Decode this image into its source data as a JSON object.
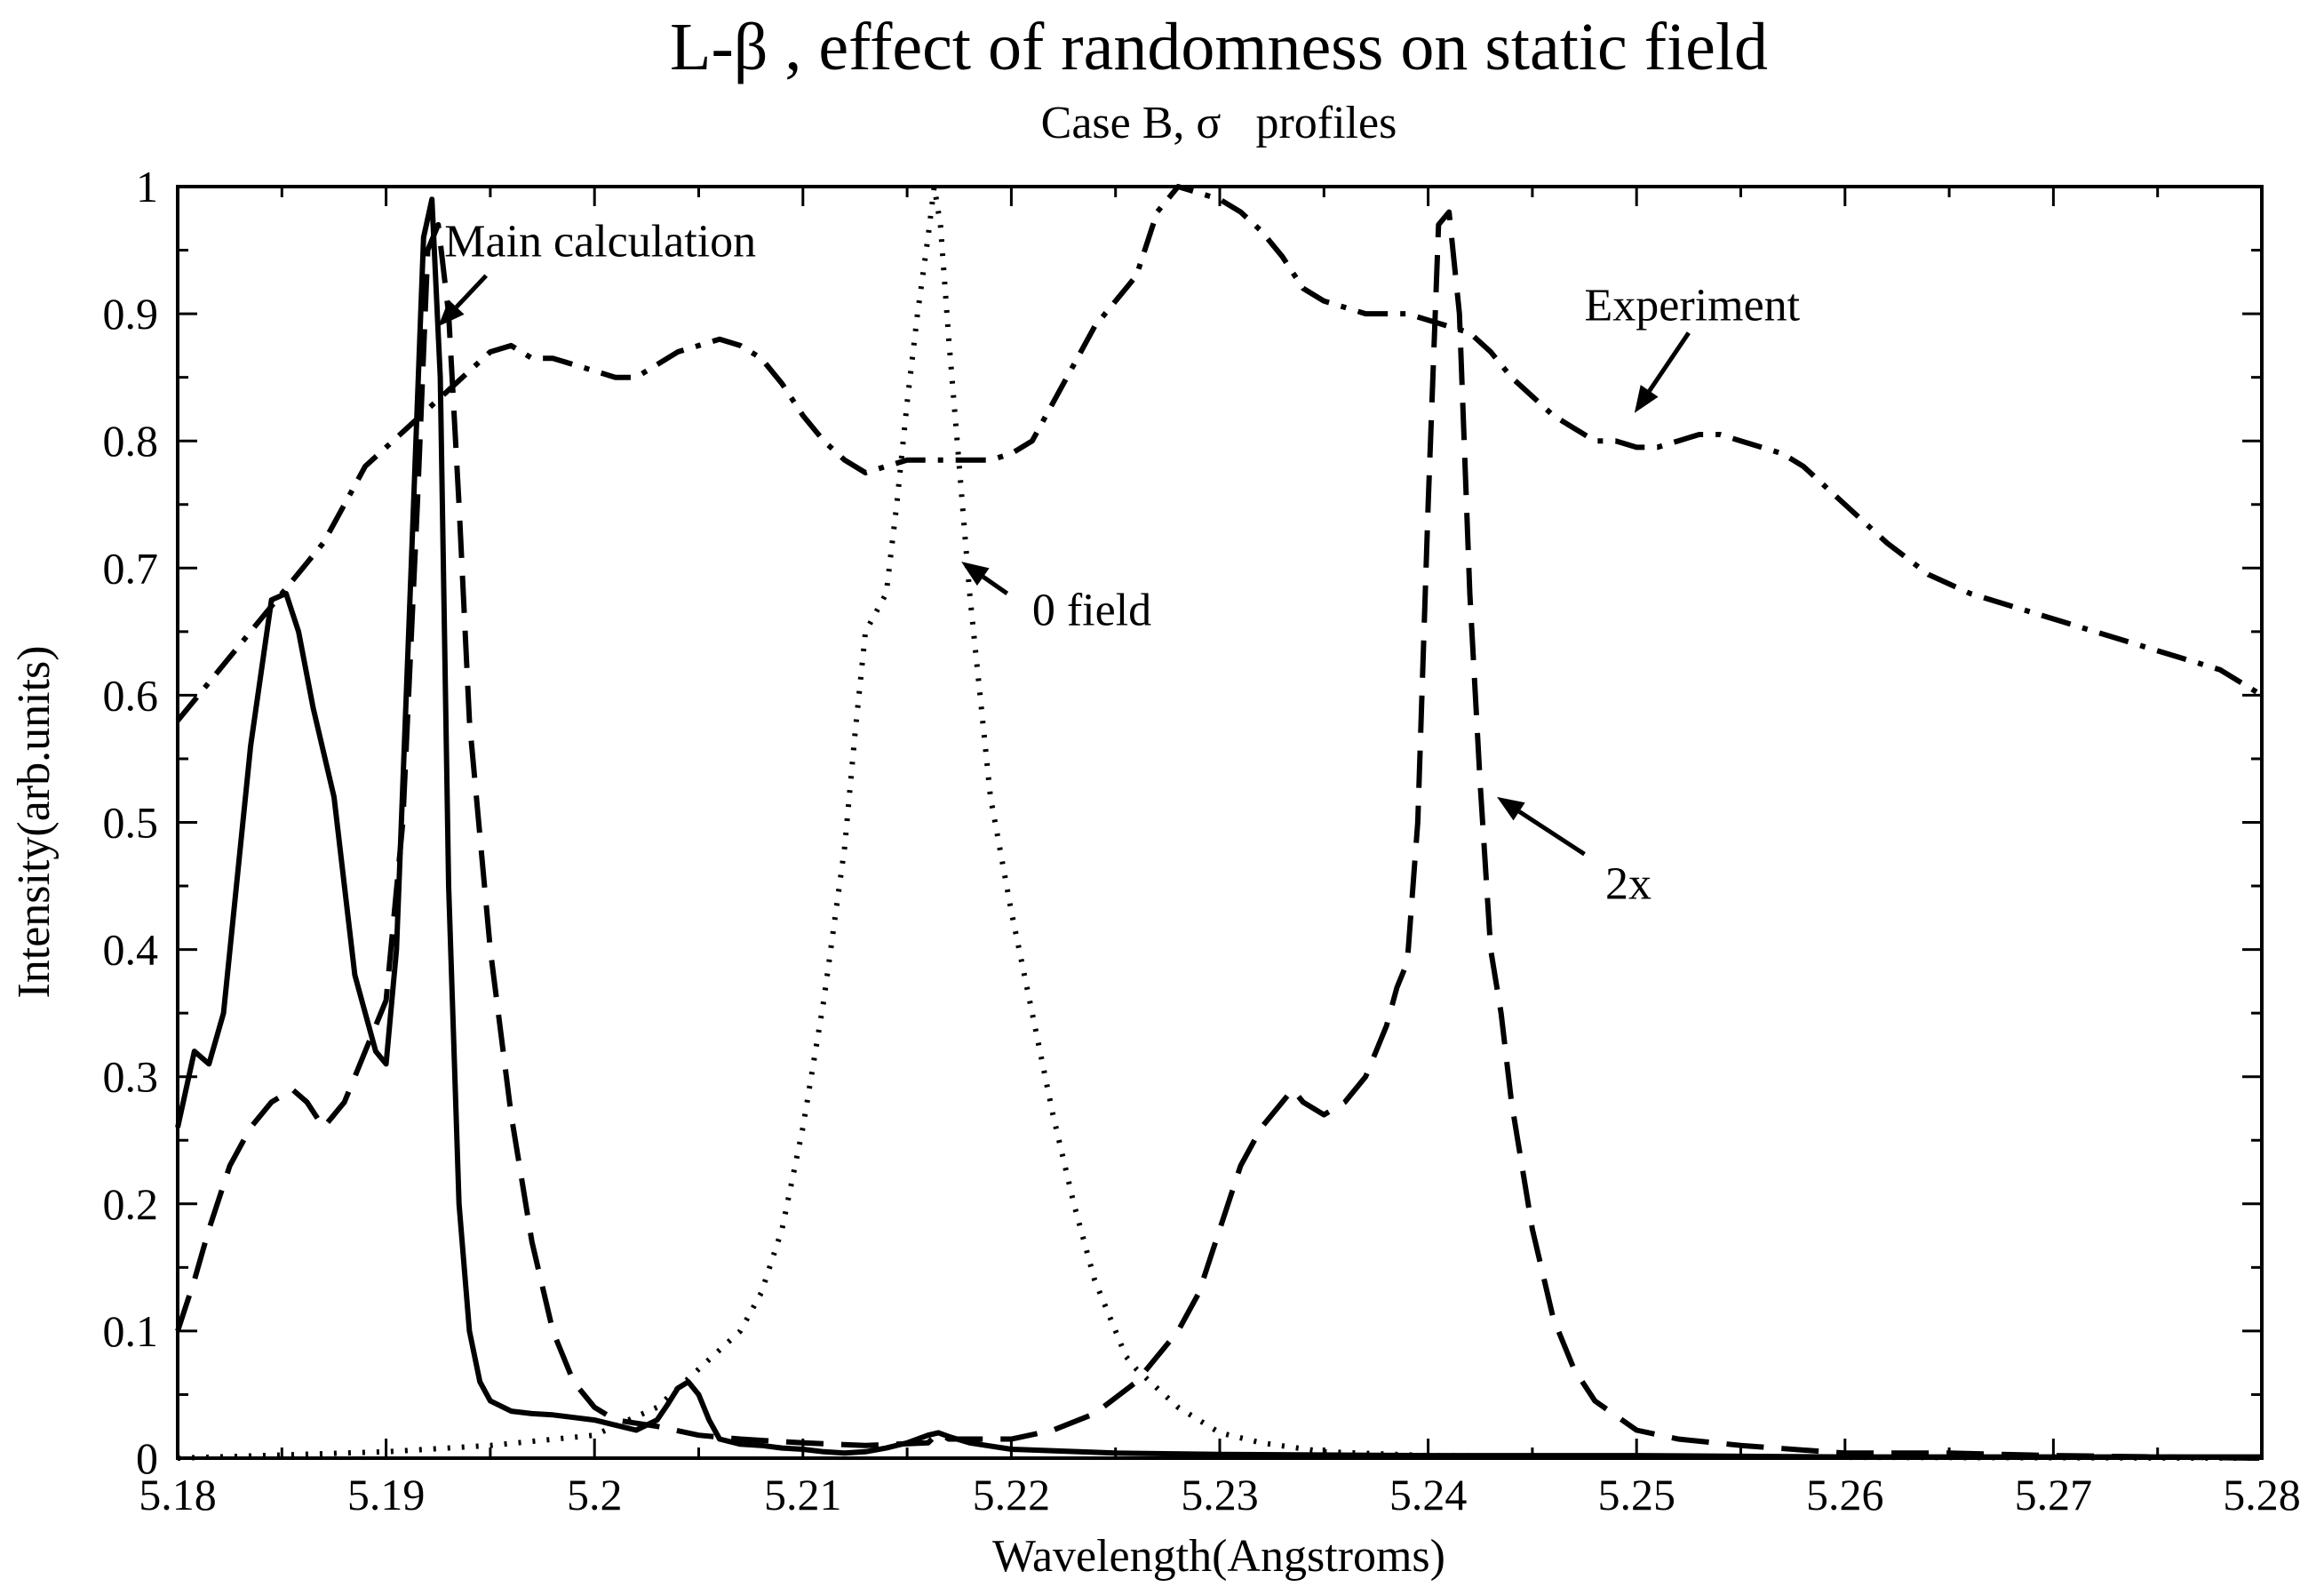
{
  "chart_data": {
    "type": "line",
    "title": "L-β , effect of randomness on static field",
    "subtitle": "Case B, σ   profiles",
    "xlabel": "Wavelength(Angstroms)",
    "ylabel": "Intensity(arb.units)",
    "xlim": [
      5.18,
      5.28
    ],
    "ylim": [
      0,
      1
    ],
    "xticks": [
      "5.18",
      "5.19",
      "5.2",
      "5.21",
      "5.22",
      "5.23",
      "5.24",
      "5.25",
      "5.26",
      "5.27",
      "5.28"
    ],
    "yticks": [
      "0",
      "0.1",
      "0.2",
      "0.3",
      "0.4",
      "0.5",
      "0.6",
      "0.7",
      "0.8",
      "0.9",
      "1"
    ],
    "grid": false,
    "series": [
      {
        "name": "Main calculation",
        "style": "solid",
        "color": "#000000",
        "x": [
          5.18,
          5.1808,
          5.1815,
          5.1822,
          5.1835,
          5.1845,
          5.1852,
          5.1858,
          5.1865,
          5.1875,
          5.1885,
          5.1895,
          5.19,
          5.1905,
          5.1912,
          5.1918,
          5.1922,
          5.1926,
          5.193,
          5.1935,
          5.194,
          5.1945,
          5.195,
          5.196,
          5.197,
          5.198,
          5.199,
          5.2,
          5.201,
          5.202,
          5.203,
          5.2035,
          5.204,
          5.2045,
          5.205,
          5.2055,
          5.206,
          5.207,
          5.208,
          5.209,
          5.21,
          5.211,
          5.212,
          5.213,
          5.214,
          5.215,
          5.216,
          5.2165,
          5.217,
          5.218,
          5.22,
          5.225,
          5.23,
          5.24,
          5.25,
          5.26,
          5.27,
          5.28
        ],
        "y": [
          0.26,
          0.32,
          0.31,
          0.35,
          0.56,
          0.675,
          0.68,
          0.65,
          0.59,
          0.52,
          0.38,
          0.32,
          0.31,
          0.4,
          0.7,
          0.96,
          0.99,
          0.85,
          0.45,
          0.2,
          0.1,
          0.06,
          0.045,
          0.037,
          0.035,
          0.034,
          0.032,
          0.03,
          0.026,
          0.022,
          0.03,
          0.042,
          0.055,
          0.06,
          0.05,
          0.03,
          0.015,
          0.011,
          0.01,
          0.008,
          0.007,
          0.005,
          0.004,
          0.005,
          0.008,
          0.012,
          0.018,
          0.02,
          0.017,
          0.012,
          0.007,
          0.004,
          0.003,
          0.002,
          0.002,
          0.001,
          0.001,
          0.001
        ]
      },
      {
        "name": "0 field",
        "style": "dotted",
        "color": "#000000",
        "x": [
          5.18,
          5.19,
          5.195,
          5.2,
          5.203,
          5.205,
          5.207,
          5.208,
          5.209,
          5.21,
          5.211,
          5.212,
          5.2125,
          5.213,
          5.214,
          5.2145,
          5.215,
          5.2155,
          5.216,
          5.2163,
          5.2166,
          5.217,
          5.2175,
          5.218,
          5.2185,
          5.219,
          5.22,
          5.221,
          5.222,
          5.223,
          5.224,
          5.225,
          5.2255,
          5.226,
          5.227,
          5.228,
          5.229,
          5.23,
          5.232,
          5.235,
          5.24,
          5.25,
          5.28
        ],
        "y": [
          0.0,
          0.005,
          0.01,
          0.018,
          0.04,
          0.07,
          0.1,
          0.13,
          0.18,
          0.26,
          0.36,
          0.48,
          0.57,
          0.65,
          0.68,
          0.75,
          0.83,
          0.9,
          0.96,
          1.0,
          0.97,
          0.88,
          0.78,
          0.68,
          0.6,
          0.52,
          0.43,
          0.35,
          0.27,
          0.2,
          0.14,
          0.1,
          0.08,
          0.07,
          0.055,
          0.04,
          0.03,
          0.02,
          0.012,
          0.005,
          0.002,
          0.001,
          0.0
        ]
      },
      {
        "name": "2x",
        "style": "dashed",
        "color": "#000000",
        "x": [
          5.18,
          5.1808,
          5.1815,
          5.1825,
          5.1835,
          5.1845,
          5.1855,
          5.1862,
          5.187,
          5.188,
          5.189,
          5.19,
          5.1908,
          5.1915,
          5.192,
          5.1925,
          5.193,
          5.1935,
          5.194,
          5.195,
          5.196,
          5.197,
          5.198,
          5.199,
          5.2,
          5.201,
          5.203,
          5.205,
          5.207,
          5.21,
          5.213,
          5.216,
          5.2165,
          5.217,
          5.22,
          5.222,
          5.224,
          5.226,
          5.227,
          5.228,
          5.229,
          5.23,
          5.231,
          5.232,
          5.233,
          5.2335,
          5.234,
          5.235,
          5.236,
          5.237,
          5.238,
          5.2385,
          5.239,
          5.2395,
          5.24,
          5.2405,
          5.241,
          5.2415,
          5.242,
          5.2425,
          5.243,
          5.2435,
          5.244,
          5.245,
          5.246,
          5.247,
          5.248,
          5.25,
          5.252,
          5.255,
          5.26,
          5.265,
          5.27,
          5.275,
          5.28
        ],
        "y": [
          0.1,
          0.14,
          0.18,
          0.23,
          0.26,
          0.28,
          0.29,
          0.28,
          0.26,
          0.28,
          0.32,
          0.36,
          0.5,
          0.75,
          0.95,
          0.97,
          0.9,
          0.75,
          0.58,
          0.4,
          0.27,
          0.17,
          0.1,
          0.06,
          0.04,
          0.03,
          0.025,
          0.018,
          0.015,
          0.012,
          0.01,
          0.012,
          0.02,
          0.015,
          0.015,
          0.022,
          0.035,
          0.06,
          0.08,
          0.1,
          0.13,
          0.18,
          0.23,
          0.26,
          0.28,
          0.29,
          0.28,
          0.27,
          0.28,
          0.3,
          0.34,
          0.37,
          0.39,
          0.5,
          0.75,
          0.97,
          0.98,
          0.9,
          0.68,
          0.53,
          0.4,
          0.35,
          0.28,
          0.18,
          0.11,
          0.07,
          0.045,
          0.022,
          0.015,
          0.01,
          0.004,
          0.004,
          0.002,
          0.001,
          0.0
        ]
      },
      {
        "name": "Experiment",
        "style": "dash-dot",
        "color": "#000000",
        "x": [
          5.18,
          5.181,
          5.182,
          5.183,
          5.184,
          5.185,
          5.186,
          5.187,
          5.188,
          5.189,
          5.19,
          5.191,
          5.192,
          5.193,
          5.194,
          5.195,
          5.196,
          5.197,
          5.198,
          5.199,
          5.2,
          5.201,
          5.202,
          5.203,
          5.204,
          5.205,
          5.206,
          5.207,
          5.208,
          5.209,
          5.21,
          5.211,
          5.212,
          5.213,
          5.214,
          5.215,
          5.216,
          5.217,
          5.218,
          5.219,
          5.22,
          5.221,
          5.222,
          5.223,
          5.224,
          5.225,
          5.226,
          5.227,
          5.228,
          5.229,
          5.23,
          5.231,
          5.232,
          5.233,
          5.234,
          5.235,
          5.236,
          5.237,
          5.238,
          5.239,
          5.24,
          5.241,
          5.242,
          5.243,
          5.244,
          5.245,
          5.246,
          5.247,
          5.248,
          5.249,
          5.25,
          5.251,
          5.252,
          5.253,
          5.254,
          5.255,
          5.256,
          5.257,
          5.258,
          5.259,
          5.26,
          5.262,
          5.264,
          5.266,
          5.268,
          5.27,
          5.272,
          5.274,
          5.276,
          5.278,
          5.28
        ],
        "y": [
          0.58,
          0.6,
          0.62,
          0.64,
          0.66,
          0.68,
          0.7,
          0.72,
          0.75,
          0.78,
          0.795,
          0.81,
          0.825,
          0.84,
          0.855,
          0.87,
          0.875,
          0.865,
          0.865,
          0.86,
          0.855,
          0.85,
          0.85,
          0.86,
          0.87,
          0.875,
          0.88,
          0.875,
          0.865,
          0.845,
          0.82,
          0.8,
          0.785,
          0.775,
          0.78,
          0.785,
          0.785,
          0.785,
          0.785,
          0.785,
          0.79,
          0.8,
          0.83,
          0.86,
          0.89,
          0.91,
          0.93,
          0.98,
          1.0,
          0.995,
          0.99,
          0.98,
          0.965,
          0.945,
          0.92,
          0.91,
          0.905,
          0.9,
          0.9,
          0.9,
          0.895,
          0.89,
          0.885,
          0.87,
          0.85,
          0.835,
          0.82,
          0.81,
          0.8,
          0.8,
          0.795,
          0.795,
          0.8,
          0.805,
          0.805,
          0.8,
          0.795,
          0.79,
          0.78,
          0.765,
          0.75,
          0.72,
          0.695,
          0.68,
          0.67,
          0.66,
          0.65,
          0.64,
          0.63,
          0.62,
          0.6
        ]
      }
    ],
    "annotations": [
      {
        "text": "Main calculation",
        "label_at": [
          5.1928,
          0.945
        ],
        "arrow_from": [
          5.1948,
          0.93
        ],
        "arrow_to": [
          5.1925,
          0.89
        ]
      },
      {
        "text": "0 field",
        "label_at": [
          5.221,
          0.655
        ],
        "arrow_from": [
          5.2198,
          0.68
        ],
        "arrow_to": [
          5.2176,
          0.705
        ]
      },
      {
        "text": "Experiment",
        "label_at": [
          5.2475,
          0.895
        ],
        "arrow_from": [
          5.2525,
          0.885
        ],
        "arrow_to": [
          5.2499,
          0.822
        ]
      },
      {
        "text": "2x",
        "label_at": [
          5.2485,
          0.44
        ],
        "arrow_from": [
          5.2475,
          0.475
        ],
        "arrow_to": [
          5.2433,
          0.52
        ]
      }
    ]
  }
}
